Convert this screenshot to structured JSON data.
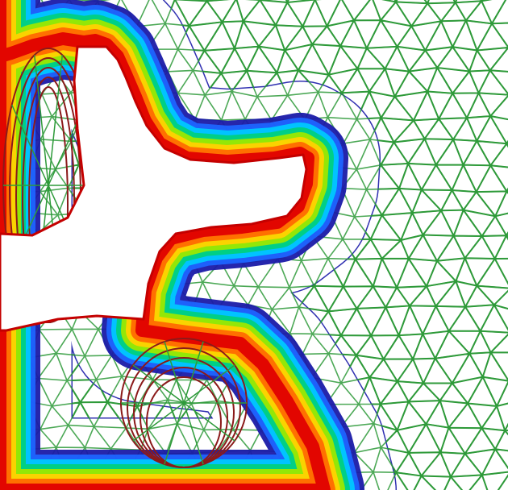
{
  "figure": {
    "kind": "boundary-layer-mesh",
    "background_mesh_color": "#2e9a3a",
    "outer_layer_line_color": "#1a1aa8",
    "inner_layer_line_color": "#8b1a1a",
    "layer_color_ramp": [
      "#e00000",
      "#ff6a00",
      "#ffd200",
      "#9be800",
      "#00d080",
      "#00c8ff",
      "#1e64ff",
      "#1a1aa8"
    ],
    "wall_color": "#ffffff"
  }
}
